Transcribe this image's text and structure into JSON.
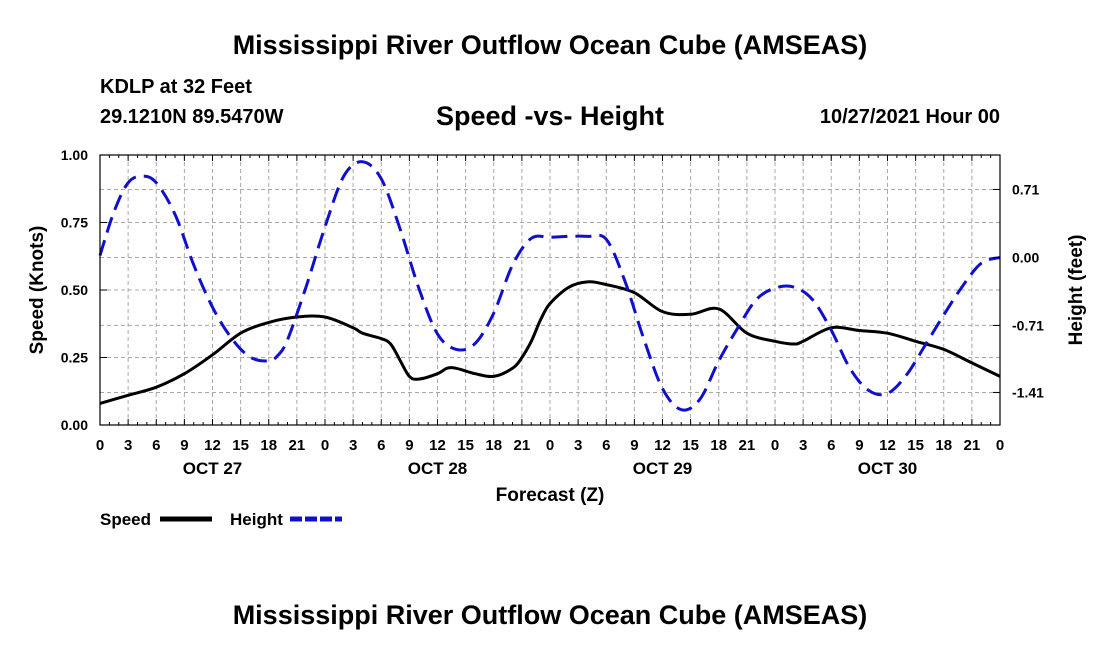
{
  "title": "Mississippi River Outflow Ocean Cube (AMSEAS)",
  "station": "KDLP at 32 Feet",
  "coords": "29.1210N  89.5470W",
  "subtitle": "Speed -vs- Height",
  "datetime": "10/27/2021 Hour 00",
  "chart_data": {
    "type": "line",
    "xlabel": "Forecast (Z)",
    "ylabel_left": "Speed (Knots)",
    "ylabel_right": "Height (feet)",
    "x_unit": "forecast hour",
    "xlim": [
      0,
      96
    ],
    "ylim_left": [
      0,
      1
    ],
    "ylim_right": [
      -1.75,
      1.07
    ],
    "x_ticks": [
      0,
      3,
      6,
      9,
      12,
      15,
      18,
      21,
      24,
      27,
      30,
      33,
      36,
      39,
      42,
      45,
      48,
      51,
      54,
      57,
      60,
      63,
      66,
      69,
      72,
      75,
      78,
      81,
      84,
      87,
      90,
      93,
      96
    ],
    "x_tick_labels": [
      "0",
      "3",
      "6",
      "9",
      "12",
      "15",
      "18",
      "21",
      "0",
      "3",
      "6",
      "9",
      "12",
      "15",
      "18",
      "21",
      "0",
      "3",
      "6",
      "9",
      "12",
      "15",
      "18",
      "21",
      "0",
      "3",
      "6",
      "9",
      "12",
      "15",
      "18",
      "21",
      "0"
    ],
    "day_labels": [
      {
        "x": 12,
        "label": "OCT 27"
      },
      {
        "x": 36,
        "label": "OCT 28"
      },
      {
        "x": 60,
        "label": "OCT 29"
      },
      {
        "x": 84,
        "label": "OCT 30"
      }
    ],
    "left_ticks": [
      0,
      0.25,
      0.5,
      0.75,
      1
    ],
    "left_tick_labels": [
      "0.00",
      "0.25",
      "0.50",
      "0.75",
      "1.00"
    ],
    "right_ticks": [
      0.71,
      0,
      -0.71,
      -1.41
    ],
    "right_tick_labels": [
      "0.71",
      "0.00",
      "-0.71",
      "-1.41"
    ],
    "grid": true,
    "legend": [
      {
        "label": "Speed",
        "color": "#000000",
        "dash": "solid"
      },
      {
        "label": "Height",
        "color": "#1010cc",
        "dash": "dashed"
      }
    ],
    "series": [
      {
        "name": "Speed",
        "axis": "left",
        "color": "#000000",
        "x": [
          0,
          3,
          6,
          9,
          12,
          15,
          18,
          21,
          24,
          27,
          28,
          30,
          31,
          32,
          33,
          34,
          36,
          37,
          38,
          40,
          42,
          44,
          45,
          46,
          47,
          48,
          50,
          52,
          54,
          57,
          60,
          63,
          66,
          69,
          72,
          74,
          75,
          78,
          81,
          84,
          87,
          90,
          93,
          96
        ],
        "y": [
          0.08,
          0.11,
          0.14,
          0.19,
          0.26,
          0.34,
          0.38,
          0.4,
          0.4,
          0.36,
          0.34,
          0.32,
          0.3,
          0.24,
          0.18,
          0.17,
          0.19,
          0.21,
          0.21,
          0.19,
          0.18,
          0.21,
          0.25,
          0.31,
          0.39,
          0.45,
          0.51,
          0.53,
          0.52,
          0.49,
          0.42,
          0.41,
          0.43,
          0.34,
          0.31,
          0.3,
          0.31,
          0.36,
          0.35,
          0.34,
          0.31,
          0.28,
          0.23,
          0.18
        ]
      },
      {
        "name": "Height",
        "axis": "right",
        "color": "#1010cc",
        "x": [
          0,
          1.5,
          3,
          4.5,
          6,
          8,
          10,
          12,
          14,
          16,
          18,
          19,
          20,
          22,
          24,
          26,
          28,
          30,
          32,
          34,
          36,
          38,
          40,
          42,
          44,
          46,
          48,
          50,
          52,
          54,
          56,
          58,
          60,
          62,
          64,
          66,
          68,
          70,
          72,
          74,
          76,
          78,
          80,
          82,
          84,
          86,
          88,
          90,
          92,
          94,
          96
        ],
        "y": [
          0.02,
          0.48,
          0.78,
          0.85,
          0.78,
          0.45,
          -0.08,
          -0.52,
          -0.84,
          -1.04,
          -1.08,
          -1.02,
          -0.86,
          -0.3,
          0.32,
          0.85,
          1.0,
          0.82,
          0.3,
          -0.32,
          -0.8,
          -0.96,
          -0.9,
          -0.58,
          -0.08,
          0.2,
          0.21,
          0.22,
          0.22,
          0.19,
          -0.25,
          -0.85,
          -1.37,
          -1.59,
          -1.48,
          -1.08,
          -0.74,
          -0.44,
          -0.32,
          -0.31,
          -0.44,
          -0.76,
          -1.16,
          -1.39,
          -1.42,
          -1.23,
          -0.92,
          -0.6,
          -0.3,
          -0.06,
          0.0
        ]
      }
    ]
  }
}
